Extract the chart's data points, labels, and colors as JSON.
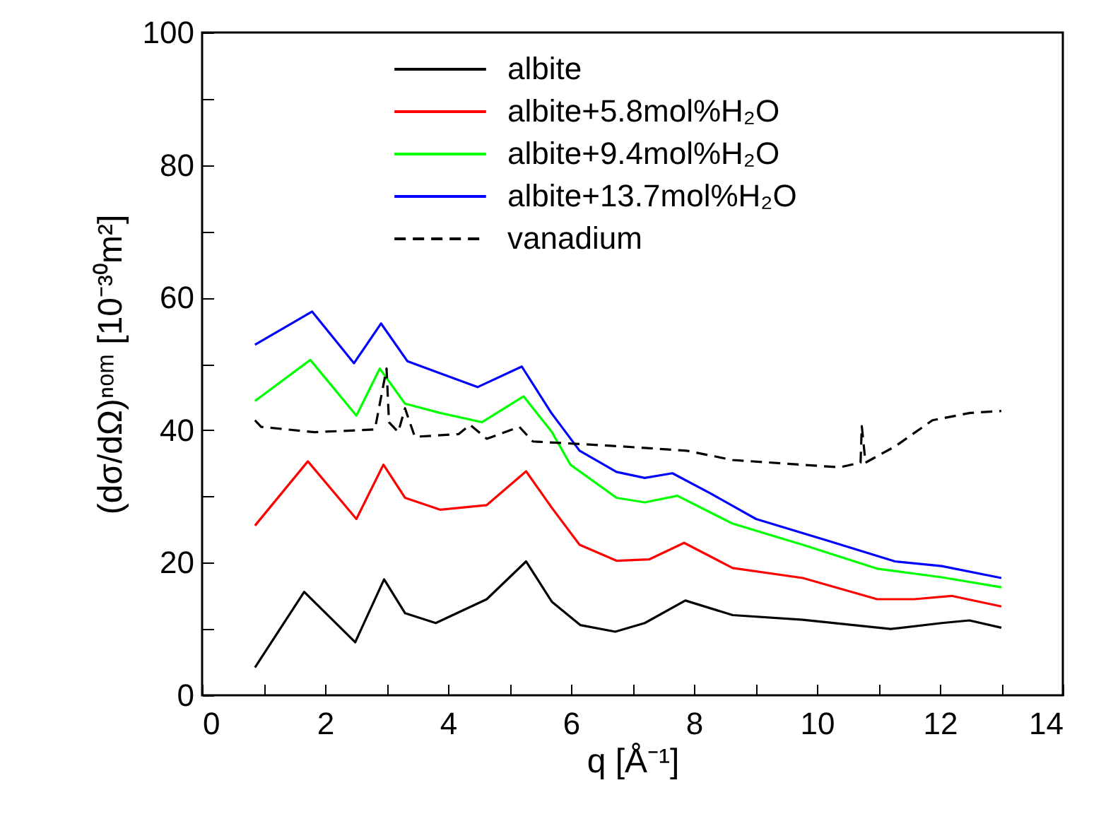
{
  "chart_data": {
    "type": "line",
    "xlabel": "q [Å⁻¹]",
    "ylabel": "(dσ/dΩ)ⁿᵒᵐ [10⁻³⁰m²]",
    "xlim": [
      0,
      14
    ],
    "ylim": [
      0,
      100
    ],
    "xticks": [
      0,
      {
        "value": 1,
        "label": null
      },
      2,
      {
        "value": 3,
        "label": null
      },
      4,
      {
        "value": 5,
        "label": null
      },
      6,
      {
        "value": 7,
        "label": null
      },
      8,
      {
        "value": 9,
        "label": null
      },
      10,
      {
        "value": 11,
        "label": null
      },
      12,
      {
        "value": 13,
        "label": null
      },
      14
    ],
    "yticks": [
      0,
      {
        "value": 10,
        "label": null
      },
      20,
      {
        "value": 30,
        "label": null
      },
      40,
      {
        "value": 50,
        "label": null
      },
      60,
      {
        "value": 70,
        "label": null
      },
      80,
      {
        "value": 90,
        "label": null
      },
      100
    ],
    "legend": "top",
    "grid": false,
    "line_style": "solid",
    "marker": "none",
    "series": [
      {
        "name": "albite",
        "color": "#000000",
        "x": [
          0.86,
          1.66,
          2.49,
          2.96,
          3.3,
          3.8,
          4.63,
          5.27,
          5.69,
          6.15,
          6.72,
          7.2,
          7.86,
          8.63,
          9.77,
          11.2,
          12.03,
          12.48,
          13.0
        ],
        "values": [
          4.2,
          15.6,
          8.0,
          17.5,
          12.4,
          10.9,
          14.5,
          20.2,
          14.1,
          10.6,
          9.6,
          10.9,
          14.3,
          12.1,
          11.4,
          10.0,
          10.9,
          11.3,
          10.2
        ]
      },
      {
        "name": "albite+5.8mol%H₂O",
        "color": "#ff0000",
        "x": [
          0.86,
          1.72,
          2.51,
          2.95,
          3.3,
          3.87,
          4.63,
          5.27,
          5.68,
          6.14,
          6.74,
          7.27,
          7.84,
          8.63,
          9.77,
          10.98,
          11.58,
          12.19,
          13.0
        ],
        "values": [
          25.6,
          35.3,
          26.6,
          34.8,
          29.8,
          28.0,
          28.7,
          33.8,
          28.4,
          22.7,
          20.3,
          20.5,
          23.0,
          19.2,
          17.7,
          14.5,
          14.5,
          15.0,
          13.4
        ]
      },
      {
        "name": "albite+9.4mol%H₂O",
        "color": "#00ff00",
        "x": [
          0.86,
          1.76,
          2.51,
          2.89,
          3.3,
          3.87,
          4.55,
          5.23,
          5.69,
          5.99,
          6.74,
          7.2,
          7.73,
          8.63,
          9.77,
          10.98,
          12.03,
          13.0
        ],
        "values": [
          44.4,
          50.6,
          42.2,
          49.3,
          44.0,
          42.6,
          41.2,
          45.1,
          39.7,
          34.8,
          29.8,
          29.1,
          30.1,
          25.9,
          22.7,
          19.1,
          17.8,
          16.3
        ]
      },
      {
        "name": "albite+13.7mol%H₂O",
        "color": "#0000ff",
        "x": [
          0.86,
          1.79,
          2.47,
          2.91,
          3.34,
          3.87,
          4.48,
          5.2,
          5.68,
          6.14,
          6.74,
          7.2,
          7.65,
          8.26,
          9.01,
          10.15,
          11.27,
          12.03,
          13.0
        ],
        "values": [
          52.9,
          57.9,
          50.1,
          56.1,
          50.4,
          48.6,
          46.5,
          49.6,
          42.6,
          36.9,
          33.7,
          32.8,
          33.5,
          30.5,
          26.6,
          23.4,
          20.2,
          19.5,
          17.7
        ]
      },
      {
        "name": "vanadium",
        "color": "#000000",
        "line_style": "dashed",
        "x": [
          0.86,
          0.96,
          1.83,
          2.81,
          3.0,
          3.04,
          3.19,
          3.3,
          3.46,
          4.17,
          4.36,
          4.63,
          5.16,
          5.38,
          6.74,
          7.88,
          8.63,
          10.37,
          10.71,
          10.73,
          10.79,
          11.28,
          11.88,
          12.49,
          13.0
        ],
        "values": [
          41.5,
          40.5,
          39.7,
          40.1,
          49.3,
          41.2,
          39.7,
          43.3,
          39.0,
          39.4,
          40.8,
          38.7,
          40.5,
          38.3,
          37.6,
          36.9,
          35.5,
          34.4,
          35.1,
          40.6,
          35.1,
          37.6,
          41.5,
          42.6,
          42.9
        ]
      }
    ]
  }
}
